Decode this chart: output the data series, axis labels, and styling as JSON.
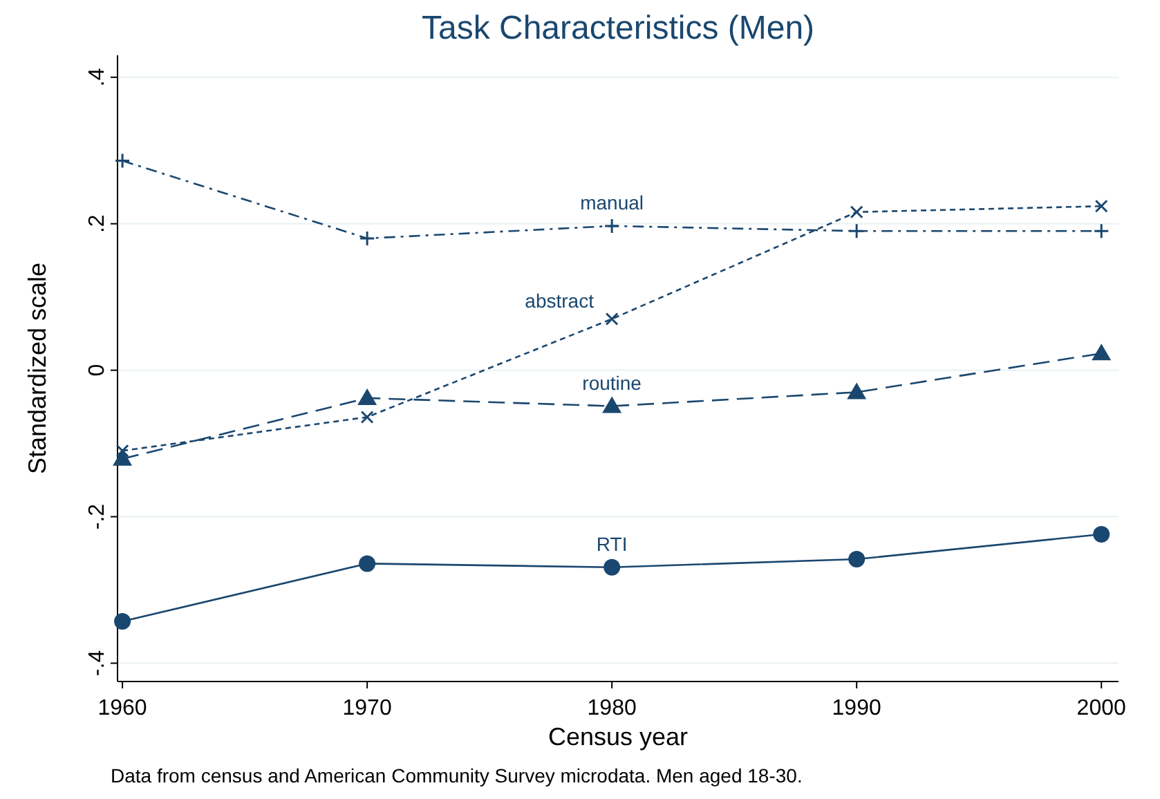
{
  "chart_data": {
    "type": "line",
    "title": "Task Characteristics (Men)",
    "xlabel": "Census year",
    "ylabel": "Standardized scale",
    "annotations": [
      "Data from census and American Community Survey microdata. Men aged 18-30."
    ],
    "x": [
      1960,
      1970,
      1980,
      1990,
      2000
    ],
    "xlim": [
      1959.8,
      2000.7
    ],
    "xticks": [
      1960,
      1970,
      1980,
      1990,
      2000
    ],
    "ylim": [
      -0.425,
      0.43
    ],
    "yticks": [
      {
        "value": 0.4,
        "label": ".4"
      },
      {
        "value": 0.2,
        "label": ".2"
      },
      0,
      {
        "value": -0.2,
        "label": "-.2"
      },
      {
        "value": -0.4,
        "label": "-.4"
      }
    ],
    "grid": "y",
    "series": [
      {
        "name": "manual",
        "color": "#1a476f",
        "values": [
          0.286,
          0.18,
          0.197,
          0.19,
          0.19
        ],
        "marker": "cross",
        "line_style": "dashdot"
      },
      {
        "name": "abstract",
        "color": "#1a476f",
        "values": [
          -0.11,
          -0.064,
          0.07,
          0.216,
          0.224
        ],
        "marker": "x",
        "line_style": "dashed"
      },
      {
        "name": "routine",
        "color": "#1a476f",
        "values": [
          -0.121,
          -0.038,
          -0.049,
          -0.03,
          0.023
        ],
        "marker": "triangle",
        "line_style": "longdash"
      },
      {
        "name": "RTI",
        "color": "#1a476f",
        "values": [
          -0.343,
          -0.264,
          -0.269,
          -0.258,
          -0.224
        ],
        "marker": "circle",
        "line_style": "solid"
      }
    ]
  }
}
